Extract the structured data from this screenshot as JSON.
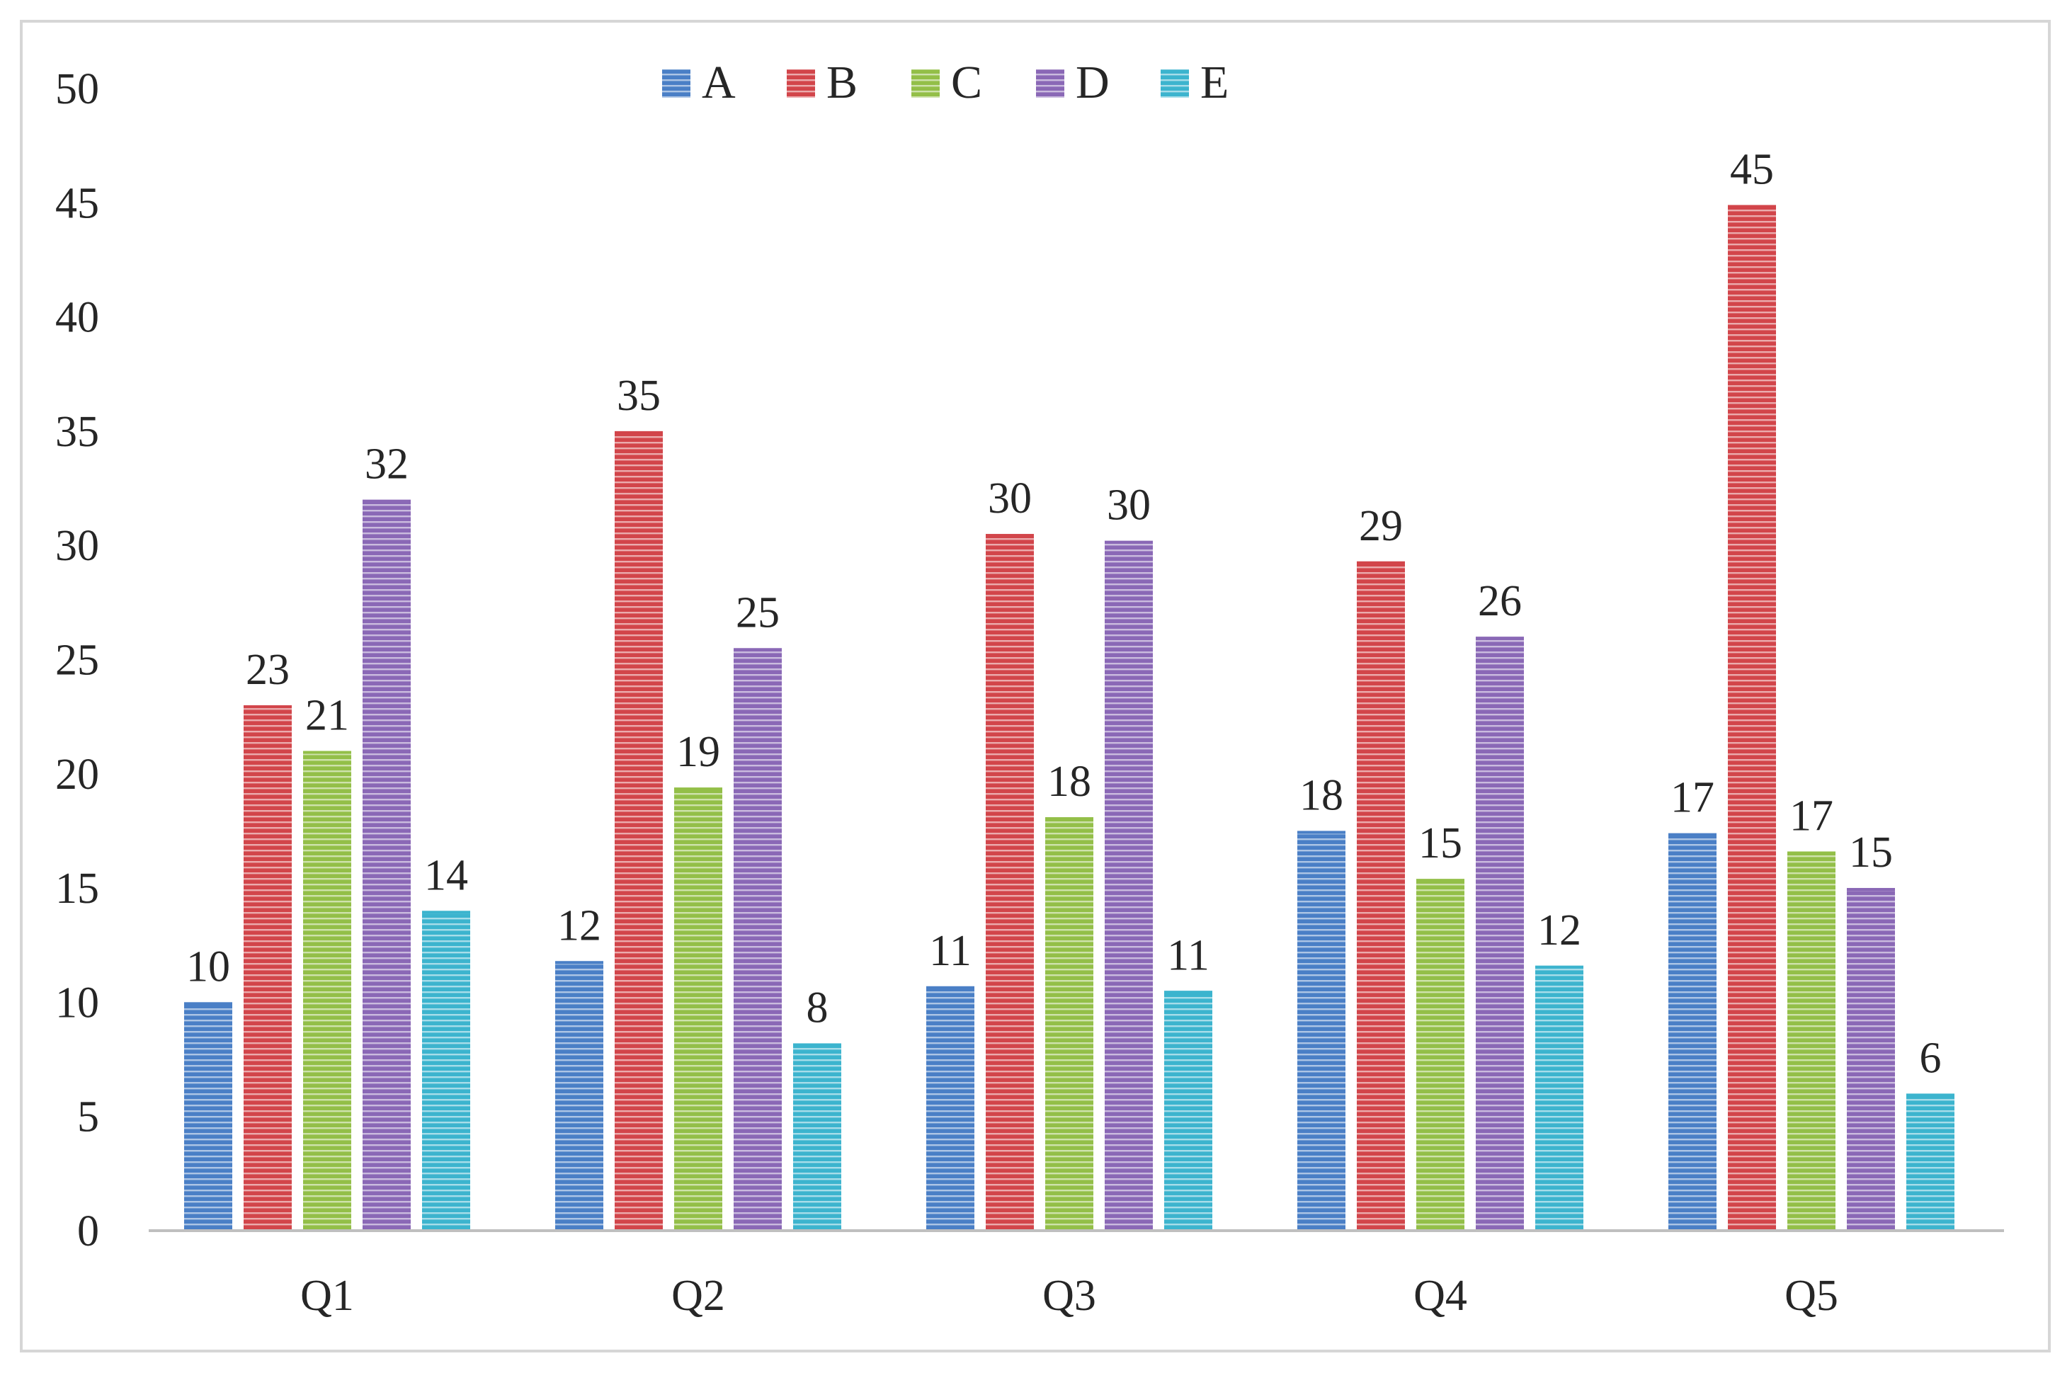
{
  "chart_data": {
    "type": "bar",
    "title": "",
    "xlabel": "",
    "ylabel": "",
    "ylim": [
      0,
      50
    ],
    "yticks": [
      0,
      5,
      10,
      15,
      20,
      25,
      30,
      35,
      40,
      45,
      50
    ],
    "grid": false,
    "legend_position": "top-center",
    "categories": [
      "Q1",
      "Q2",
      "Q3",
      "Q4",
      "Q5"
    ],
    "series": [
      {
        "name": "A",
        "color": "#4a7fc6",
        "values": [
          10,
          11.8,
          10.7,
          17.5,
          17.4
        ],
        "labels": [
          "10",
          "12",
          "11",
          "18",
          "17"
        ]
      },
      {
        "name": "B",
        "color": "#d2454a",
        "values": [
          23,
          35,
          30.5,
          29.3,
          44.9
        ],
        "labels": [
          "23",
          "35",
          "30",
          "29",
          "45"
        ]
      },
      {
        "name": "C",
        "color": "#93bf48",
        "values": [
          21,
          19.4,
          18.1,
          15.4,
          16.6
        ],
        "labels": [
          "21",
          "19",
          "18",
          "15",
          "17"
        ]
      },
      {
        "name": "D",
        "color": "#8a68b6",
        "values": [
          32,
          25.5,
          30.2,
          26,
          15
        ],
        "labels": [
          "32",
          "25",
          "30",
          "26",
          "15"
        ]
      },
      {
        "name": "E",
        "color": "#3cb4ce",
        "values": [
          14,
          8.2,
          10.5,
          11.6,
          6
        ],
        "labels": [
          "14",
          "8",
          "11",
          "12",
          "6"
        ]
      }
    ]
  }
}
